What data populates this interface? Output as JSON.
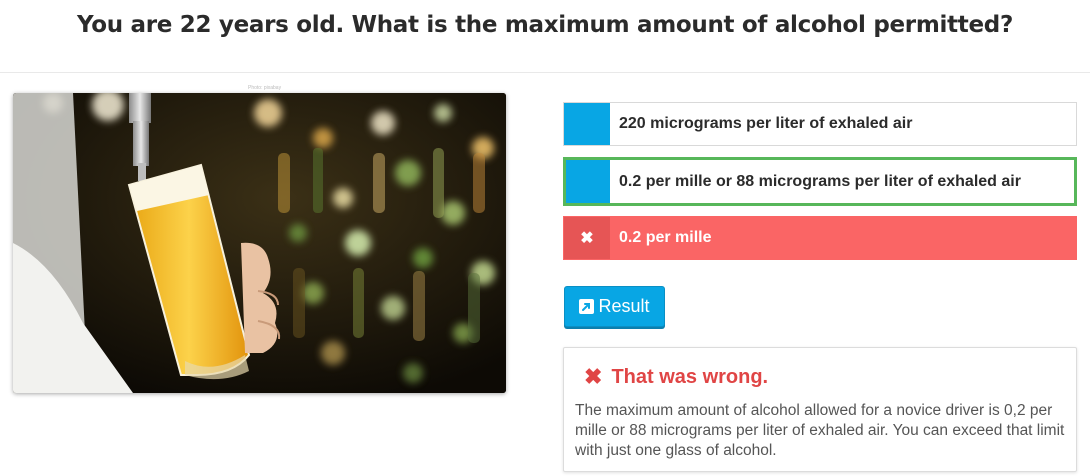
{
  "question": "You are 22 years old. What is the maximum amount of alcohol permitted?",
  "photo": {
    "credit": "Photo: pixabay",
    "alt": "bartender-tapping-beer-icon"
  },
  "answers": [
    {
      "label": "220 micrograms per liter of exhaled air",
      "state": "unselected"
    },
    {
      "label": "0.2 per mille or 88 micrograms per liter of exhaled air",
      "state": "correct"
    },
    {
      "label": "0.2 per mille",
      "state": "wrong",
      "marker": "✖"
    }
  ],
  "result_button": {
    "label": "Result",
    "icon": "external-link-icon"
  },
  "feedback": {
    "icon": "✖",
    "title": "That was wrong.",
    "text": "The maximum amount of alcohol allowed for a novice driver is 0,2 per mille or 88 micrograms per liter of exhaled air. You can exceed that limit with just one glass of alcohol."
  },
  "colors": {
    "accent": "#08a6e4",
    "correct_border": "#57b75a",
    "wrong_bg": "#fa6565",
    "error_text": "#e04545"
  }
}
